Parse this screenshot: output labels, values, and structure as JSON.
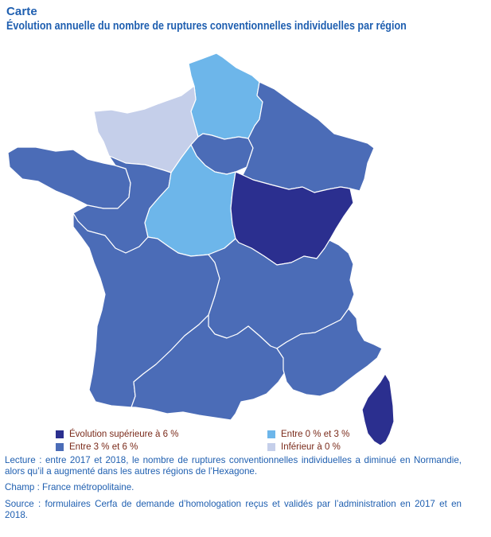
{
  "header": {
    "kicker": "Carte",
    "title": "Évolution annuelle du nombre de ruptures conventionnelles individuelles par région"
  },
  "map": {
    "classes": {
      "sup6": {
        "label": "Évolution supérieure à 6 %",
        "color": "#2b2f8f"
      },
      "b3_6": {
        "label": "Entre 3 % et 6 %",
        "color": "#4b6cb7"
      },
      "b0_3": {
        "label": "Entre 0 % et 3 %",
        "color": "#6db6ea"
      },
      "neg": {
        "label": "Inférieur à 0 %",
        "color": "#c5cfea"
      }
    },
    "regions": [
      {
        "name": "Hauts-de-France",
        "class": "b0_3"
      },
      {
        "name": "Normandie",
        "class": "neg"
      },
      {
        "name": "Île-de-France",
        "class": "b3_6"
      },
      {
        "name": "Grand Est",
        "class": "b3_6"
      },
      {
        "name": "Bretagne",
        "class": "b3_6"
      },
      {
        "name": "Pays de la Loire",
        "class": "b3_6"
      },
      {
        "name": "Centre-Val de Loire",
        "class": "b0_3"
      },
      {
        "name": "Bourgogne-Franche-Comté",
        "class": "sup6"
      },
      {
        "name": "Nouvelle-Aquitaine",
        "class": "b3_6"
      },
      {
        "name": "Auvergne-Rhône-Alpes",
        "class": "b3_6"
      },
      {
        "name": "Occitanie",
        "class": "b3_6"
      },
      {
        "name": "Provence-Alpes-Côte d'Azur",
        "class": "b3_6"
      },
      {
        "name": "Corse",
        "class": "sup6"
      }
    ]
  },
  "legend": [
    {
      "label": "Évolution supérieure à 6 %",
      "color": "#2b2f8f"
    },
    {
      "label": "Entre 3 % et 6 %",
      "color": "#4b6cb7"
    },
    {
      "label": "Entre 0 % et 3 %",
      "color": "#6db6ea"
    },
    {
      "label": "Inférieur à 0 %",
      "color": "#c5cfea"
    }
  ],
  "notes": {
    "lecture": "Lecture : entre 2017 et 2018, le nombre de ruptures conventionnelles individuelles a diminué en Normandie, alors qu’il a augmenté dans les autres régions de l’Hexagone.",
    "champ": "Champ : France métropolitaine.",
    "source": "Source : formulaires Cerfa de demande d’homologation reçus et validés par l’administration en 2017 et en 2018."
  }
}
